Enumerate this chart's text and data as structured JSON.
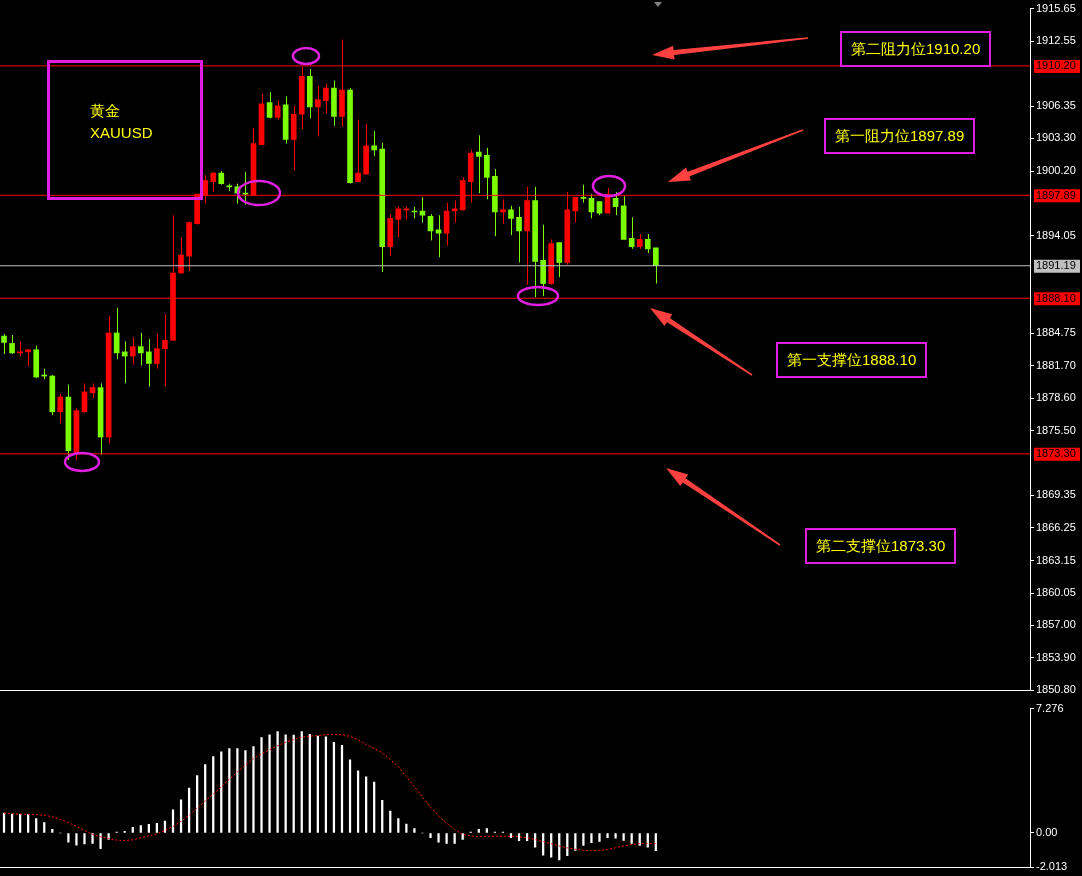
{
  "chart_data": [
    {
      "type": "candlestick",
      "title": "黄金",
      "subtitle": "XAUUSD",
      "categories": [
        null,
        null,
        null,
        null,
        null,
        null,
        null,
        null,
        null,
        null,
        null,
        null,
        null,
        null,
        null,
        null,
        null,
        null,
        null,
        null,
        null,
        null,
        null,
        null,
        null,
        null,
        null,
        null,
        null,
        null,
        null,
        null,
        null,
        null,
        null,
        null,
        null,
        null,
        null,
        null,
        null,
        null,
        null,
        null,
        null,
        null,
        null,
        null,
        null,
        null,
        null,
        null,
        null,
        null,
        null,
        null,
        null,
        null,
        null,
        null,
        null,
        null,
        null,
        null,
        null,
        null,
        null,
        null,
        null,
        null,
        null,
        null,
        null,
        null,
        null,
        null,
        null,
        null,
        null,
        null,
        null,
        null,
        null,
        null,
        null,
        null,
        null,
        null,
        null,
        null,
        null,
        null,
        null,
        null,
        null,
        null,
        null,
        null,
        null,
        null,
        null,
        null,
        null,
        null,
        null,
        null,
        null,
        null,
        null,
        null,
        null,
        null,
        null,
        null,
        null,
        null,
        null,
        null,
        null,
        null,
        null,
        null,
        null,
        null,
        null,
        null,
        null,
        null
      ],
      "ohlc": [
        [
          1884.5,
          1884.7,
          1882.8,
          1883.9
        ],
        [
          1883.8,
          1884.6,
          1882.8,
          1882.9
        ],
        [
          1882.9,
          1884.0,
          1882.6,
          1883.0
        ],
        [
          1883.0,
          1883.2,
          1881.6,
          1883.2
        ],
        [
          1883.2,
          1883.6,
          1880.5,
          1880.6
        ],
        [
          1880.8,
          1881.4,
          1880.4,
          1880.7
        ],
        [
          1880.7,
          1880.8,
          1877.0,
          1877.3
        ],
        [
          1877.3,
          1879.0,
          1876.2,
          1878.7
        ],
        [
          1878.7,
          1879.9,
          1872.7,
          1873.6
        ],
        [
          1873.4,
          1877.6,
          1872.7,
          1877.4
        ],
        [
          1877.3,
          1880.0,
          1877.2,
          1879.2
        ],
        [
          1879.1,
          1880.0,
          1878.6,
          1879.6
        ],
        [
          1879.6,
          1880.0,
          1873.2,
          1874.9
        ],
        [
          1874.9,
          1886.4,
          1874.3,
          1884.8
        ],
        [
          1884.8,
          1887.2,
          1882.3,
          1882.9
        ],
        [
          1883.0,
          1884.0,
          1880.0,
          1882.6
        ],
        [
          1882.6,
          1884.4,
          1881.8,
          1883.5
        ],
        [
          1883.5,
          1884.8,
          1881.7,
          1882.9
        ],
        [
          1883.0,
          1884.2,
          1879.7,
          1881.9
        ],
        [
          1881.9,
          1884.7,
          1881.4,
          1883.3
        ],
        [
          1883.3,
          1886.6,
          1879.7,
          1884.1
        ],
        [
          1884.1,
          1896.0,
          1884.1,
          1890.5
        ],
        [
          1890.5,
          1893.9,
          1890.4,
          1892.2
        ],
        [
          1892.1,
          1895.4,
          1890.7,
          1895.3
        ],
        [
          1895.2,
          1898.0,
          1895.1,
          1898.0
        ],
        [
          1897.9,
          1899.8,
          1897.1,
          1899.3
        ],
        [
          1899.2,
          1900.1,
          1898.2,
          1900.0
        ],
        [
          1900.0,
          1900.2,
          1898.9,
          1899.0
        ],
        [
          1898.8,
          1899.0,
          1898.3,
          1898.7
        ],
        [
          1898.7,
          1899.0,
          1897.1,
          1898.1
        ],
        [
          1898.1,
          1900.1,
          1897.0,
          1898.0
        ],
        [
          1897.9,
          1904.3,
          1897.9,
          1902.8
        ],
        [
          1902.7,
          1907.5,
          1902.7,
          1906.6
        ],
        [
          1906.7,
          1907.7,
          1905.2,
          1905.3
        ],
        [
          1905.3,
          1906.9,
          1905.1,
          1906.4
        ],
        [
          1906.5,
          1907.3,
          1902.8,
          1903.2
        ],
        [
          1903.2,
          1906.4,
          1900.3,
          1905.6
        ],
        [
          1905.6,
          1910.1,
          1904.2,
          1909.2
        ],
        [
          1909.2,
          1909.9,
          1905.2,
          1906.3
        ],
        [
          1906.3,
          1908.3,
          1903.5,
          1907.0
        ],
        [
          1906.9,
          1908.5,
          1905.7,
          1908.1
        ],
        [
          1908.1,
          1908.8,
          1904.5,
          1905.4
        ],
        [
          1905.4,
          1912.7,
          1904.4,
          1907.9
        ],
        [
          1907.9,
          1908.1,
          1899.0,
          1899.1
        ],
        [
          1899.2,
          1905.1,
          1899.2,
          1900.0
        ],
        [
          1899.9,
          1904.7,
          1899.9,
          1902.6
        ],
        [
          1902.6,
          1904.0,
          1901.6,
          1902.2
        ],
        [
          1902.3,
          1902.9,
          1890.6,
          1893.0
        ],
        [
          1893.0,
          1896.1,
          1892.1,
          1895.7
        ],
        [
          1895.6,
          1896.8,
          1893.9,
          1896.6
        ],
        [
          1896.5,
          1896.8,
          1895.6,
          1896.6
        ],
        [
          1896.4,
          1896.8,
          1895.7,
          1896.3
        ],
        [
          1896.4,
          1897.7,
          1895.3,
          1896.0
        ],
        [
          1895.9,
          1896.1,
          1893.6,
          1894.5
        ],
        [
          1894.6,
          1896.0,
          1892.0,
          1894.3
        ],
        [
          1894.3,
          1897.2,
          1893.1,
          1896.4
        ],
        [
          1896.4,
          1897.4,
          1895.3,
          1896.6
        ],
        [
          1896.5,
          1899.6,
          1896.5,
          1899.3
        ],
        [
          1899.2,
          1902.2,
          1897.2,
          1901.9
        ],
        [
          1902.0,
          1903.6,
          1898.1,
          1901.6
        ],
        [
          1901.7,
          1902.4,
          1897.5,
          1899.6
        ],
        [
          1899.7,
          1900.4,
          1894.0,
          1896.3
        ],
        [
          1896.3,
          1897.5,
          1895.2,
          1896.5
        ],
        [
          1896.5,
          1896.9,
          1894.1,
          1895.7
        ],
        [
          1895.8,
          1896.8,
          1891.5,
          1894.5
        ],
        [
          1894.5,
          1898.7,
          1889.4,
          1897.4
        ],
        [
          1897.4,
          1898.7,
          1888.2,
          1891.6
        ],
        [
          1891.7,
          1895.1,
          1888.3,
          1889.5
        ],
        [
          1889.5,
          1893.7,
          1889.4,
          1893.3
        ],
        [
          1893.4,
          1893.4,
          1890.1,
          1891.5
        ],
        [
          1891.5,
          1898.2,
          1891.3,
          1896.5
        ],
        [
          1896.4,
          1897.7,
          1895.3,
          1897.7
        ],
        [
          1897.7,
          1898.9,
          1897.2,
          1897.6
        ],
        [
          1897.6,
          1898.0,
          1895.7,
          1896.3
        ],
        [
          1897.3,
          1897.3,
          1896.0,
          1896.2
        ],
        [
          1896.2,
          1898.6,
          1896.2,
          1898.0
        ],
        [
          1897.6,
          1898.2,
          1896.0,
          1896.8
        ],
        [
          1896.9,
          1897.8,
          1893.7,
          1893.7
        ],
        [
          1893.8,
          1895.8,
          1892.8,
          1893.0
        ],
        [
          1893.0,
          1894.2,
          1892.8,
          1893.7
        ],
        [
          1893.7,
          1894.2,
          1892.4,
          1892.8
        ],
        [
          1892.9,
          1892.9,
          1889.5,
          1891.2
        ],
        null,
        null,
        null,
        null,
        null,
        null,
        null,
        null,
        null,
        null,
        null,
        null,
        null,
        null,
        null,
        null,
        null,
        null,
        null,
        null,
        null,
        null,
        null,
        null,
        null,
        null,
        null,
        null,
        null,
        null,
        null,
        null,
        null,
        null,
        null,
        null,
        null,
        null,
        null,
        null,
        null,
        null,
        null,
        null,
        null,
        null
      ],
      "colors": [
        "#7cfc00",
        "#7cfc00",
        "#ff0000",
        "#ff0000",
        "#7cfc00",
        "#7cfc00",
        "#7cfc00",
        "#ff0000",
        "#7cfc00",
        "#ff0000",
        "#ff0000",
        "#ff0000",
        "#7cfc00",
        "#ff0000",
        "#7cfc00",
        "#7cfc00",
        "#ff0000",
        "#7cfc00",
        "#7cfc00",
        "#ff0000",
        "#ff0000",
        "#ff0000",
        "#ff0000",
        "#ff0000",
        "#ff0000",
        "#ff0000",
        "#ff0000",
        "#7cfc00",
        "#7cfc00",
        "#7cfc00",
        "#7cfc00",
        "#ff0000",
        "#ff0000",
        "#7cfc00",
        "#ff0000",
        "#7cfc00",
        "#ff0000",
        "#ff0000",
        "#7cfc00",
        "#ff0000",
        "#ff0000",
        "#7cfc00",
        "#ff0000",
        "#7cfc00",
        "#ff0000",
        "#ff0000",
        "#7cfc00",
        "#7cfc00",
        "#ff0000",
        "#ff0000",
        "#ff0000",
        "#7cfc00",
        "#7cfc00",
        "#7cfc00",
        "#7cfc00",
        "#ff0000",
        "#ff0000",
        "#ff0000",
        "#ff0000",
        "#7cfc00",
        "#7cfc00",
        "#7cfc00",
        "#ff0000",
        "#7cfc00",
        "#7cfc00",
        "#ff0000",
        "#7cfc00",
        "#7cfc00",
        "#ff0000",
        "#7cfc00",
        "#ff0000",
        "#ff0000",
        "#7cfc00",
        "#7cfc00",
        "#7cfc00",
        "#ff0000",
        "#7cfc00",
        "#7cfc00",
        "#7cfc00",
        "#ff0000",
        "#7cfc00",
        "#7cfc00",
        null,
        null,
        null,
        null,
        null,
        null,
        null,
        null,
        null,
        null,
        null,
        null,
        null,
        null,
        null,
        null,
        null,
        null,
        null,
        null,
        null,
        null,
        null,
        null,
        null,
        null,
        null,
        null,
        null,
        null,
        null,
        null,
        null,
        null,
        null,
        null,
        null,
        null,
        null,
        null,
        null,
        null,
        null,
        null,
        null,
        null
      ],
      "ylim": [
        1850.8,
        1915.65
      ],
      "yticks": [
        1915.65,
        1912.55,
        1906.35,
        {
          "value": 1903.3,
          "label": "1903.30"
        },
        {
          "value": 1900.2,
          "label": "1900.20"
        },
        1894.05,
        1884.75,
        {
          "value": 1881.7,
          "label": "1881.70"
        },
        {
          "value": 1878.6,
          "label": "1878.60"
        },
        {
          "value": 1875.5,
          "label": "1875.50"
        },
        1869.35,
        1866.25,
        1863.15,
        1860.05,
        {
          "value": 1857.0,
          "label": "1857.00"
        },
        {
          "value": 1853.9,
          "label": "1853.90"
        },
        {
          "value": 1850.8,
          "label": "1850.80"
        }
      ],
      "ref_lines": [
        {
          "axis": "y",
          "value": 1910.2,
          "label": "1910.20",
          "color": "#ff0000"
        },
        {
          "axis": "y",
          "value": 1897.89,
          "label": "1897.89",
          "color": "#ff0000"
        },
        {
          "axis": "y",
          "value": 1891.19,
          "label": "1891.19",
          "color": "#c0c0c0"
        },
        {
          "axis": "y",
          "value": 1888.1,
          "label": "1888.10",
          "color": "#ff0000"
        },
        {
          "axis": "y",
          "value": 1873.3,
          "label": "1873.30",
          "color": "#ff0000"
        }
      ],
      "annotations": [
        "第二阻力位1910.20",
        "第一阻力位1897.89",
        "第一支撑位1888.10",
        "第二支撑位1873.30"
      ],
      "tick_labels": "y",
      "grid": false,
      "legend": false
    },
    {
      "type": "bar",
      "categories": [
        null,
        null,
        null,
        null,
        null,
        null,
        null,
        null,
        null,
        null,
        null,
        null,
        null,
        null,
        null,
        null,
        null,
        null,
        null,
        null,
        null,
        null,
        null,
        null,
        null,
        null,
        null,
        null,
        null,
        null,
        null,
        null,
        null,
        null,
        null,
        null,
        null,
        null,
        null,
        null,
        null,
        null,
        null,
        null,
        null,
        null,
        null,
        null,
        null,
        null,
        null,
        null,
        null,
        null,
        null,
        null,
        null,
        null,
        null,
        null,
        null,
        null,
        null,
        null,
        null,
        null,
        null,
        null,
        null,
        null,
        null,
        null,
        null,
        null,
        null,
        null,
        null,
        null,
        null,
        null,
        null,
        null,
        null,
        null,
        null,
        null,
        null,
        null,
        null,
        null,
        null,
        null,
        null,
        null,
        null,
        null,
        null,
        null,
        null,
        null,
        null,
        null,
        null,
        null,
        null,
        null,
        null,
        null,
        null,
        null,
        null,
        null,
        null,
        null,
        null,
        null,
        null,
        null,
        null,
        null,
        null,
        null,
        null,
        null,
        null,
        null,
        null,
        null
      ],
      "series": [
        {
          "type": "bar",
          "color": "#ffffff",
          "values": [
            1.16,
            1.11,
            1.09,
            1.09,
            0.85,
            0.61,
            0.21,
            0,
            -0.54,
            -0.71,
            -0.64,
            -0.61,
            -0.92,
            -0.38,
            0.05,
            0.1,
            0.33,
            0.43,
            0.5,
            0.57,
            0.69,
            1.35,
            1.94,
            2.62,
            3.36,
            4.0,
            4.47,
            4.75,
            4.94,
            4.94,
            4.82,
            5.06,
            5.58,
            5.74,
            5.93,
            5.74,
            5.72,
            5.93,
            5.77,
            5.67,
            5.63,
            5.3,
            5.13,
            4.28,
            3.64,
            3.29,
            2.98,
            1.91,
            1.28,
            0.85,
            0.52,
            0.26,
            0,
            -0.28,
            -0.54,
            -0.61,
            -0.61,
            -0.38,
            0.05,
            0.21,
            0.26,
            0.05,
            0.05,
            -0.28,
            -0.45,
            -0.45,
            -0.83,
            -1.3,
            -1.42,
            -1.58,
            -1.32,
            -1.02,
            -0.73,
            -0.57,
            -0.5,
            -0.28,
            -0.31,
            -0.43,
            -0.61,
            -0.73,
            -0.83,
            -1.04,
            null,
            null,
            null,
            null,
            null,
            null,
            null,
            null,
            null,
            null,
            null,
            null,
            null,
            null,
            null,
            null,
            null,
            null,
            null,
            null,
            null,
            null,
            null,
            null,
            null,
            null,
            null,
            null,
            null,
            null,
            null,
            null,
            null,
            null,
            null,
            null,
            null,
            null,
            null,
            null,
            null,
            null,
            null,
            null,
            null,
            null
          ]
        },
        {
          "type": "line",
          "color": "#ff0000",
          "line_style": "dotted",
          "values": [
            1.16,
            1.13,
            1.11,
            1.09,
            1.07,
            1.04,
            0.95,
            0.8,
            0.6,
            0.38,
            0.15,
            -0.09,
            -0.22,
            -0.33,
            -0.42,
            -0.45,
            -0.4,
            -0.28,
            -0.17,
            -0.05,
            0.15,
            0.38,
            0.68,
            1.04,
            1.45,
            1.87,
            2.28,
            2.7,
            3.15,
            3.57,
            3.97,
            4.35,
            4.63,
            4.87,
            5.1,
            5.3,
            5.47,
            5.6,
            5.66,
            5.7,
            5.75,
            5.77,
            5.74,
            5.65,
            5.45,
            5.18,
            4.95,
            4.7,
            4.3,
            3.88,
            3.3,
            2.7,
            2.1,
            1.51,
            1.0,
            0.57,
            0.2,
            -0.09,
            -0.17,
            -0.21,
            -0.2,
            -0.19,
            -0.19,
            -0.19,
            -0.22,
            -0.28,
            -0.38,
            -0.5,
            -0.63,
            -0.76,
            -0.87,
            -0.95,
            -1.01,
            -1.04,
            -1.02,
            -0.97,
            -0.86,
            -0.76,
            -0.68,
            -0.61,
            -0.61,
            -0.61,
            null,
            null,
            null,
            null,
            null,
            null,
            null,
            null,
            null,
            null,
            null,
            null,
            null,
            null,
            null,
            null,
            null,
            null,
            null,
            null,
            null,
            null,
            null,
            null,
            null,
            null,
            null,
            null,
            null,
            null,
            null,
            null,
            null,
            null,
            null,
            null,
            null,
            null,
            null,
            null,
            null,
            null,
            null,
            null,
            null,
            null
          ]
        }
      ],
      "ylim": [
        -2.013,
        7.276
      ],
      "yticks": [
        7.276,
        {
          "value": 0,
          "label": "0.00"
        },
        -2.013
      ],
      "marker": "none",
      "tick_labels": "y",
      "grid": false,
      "legend": false
    }
  ]
}
